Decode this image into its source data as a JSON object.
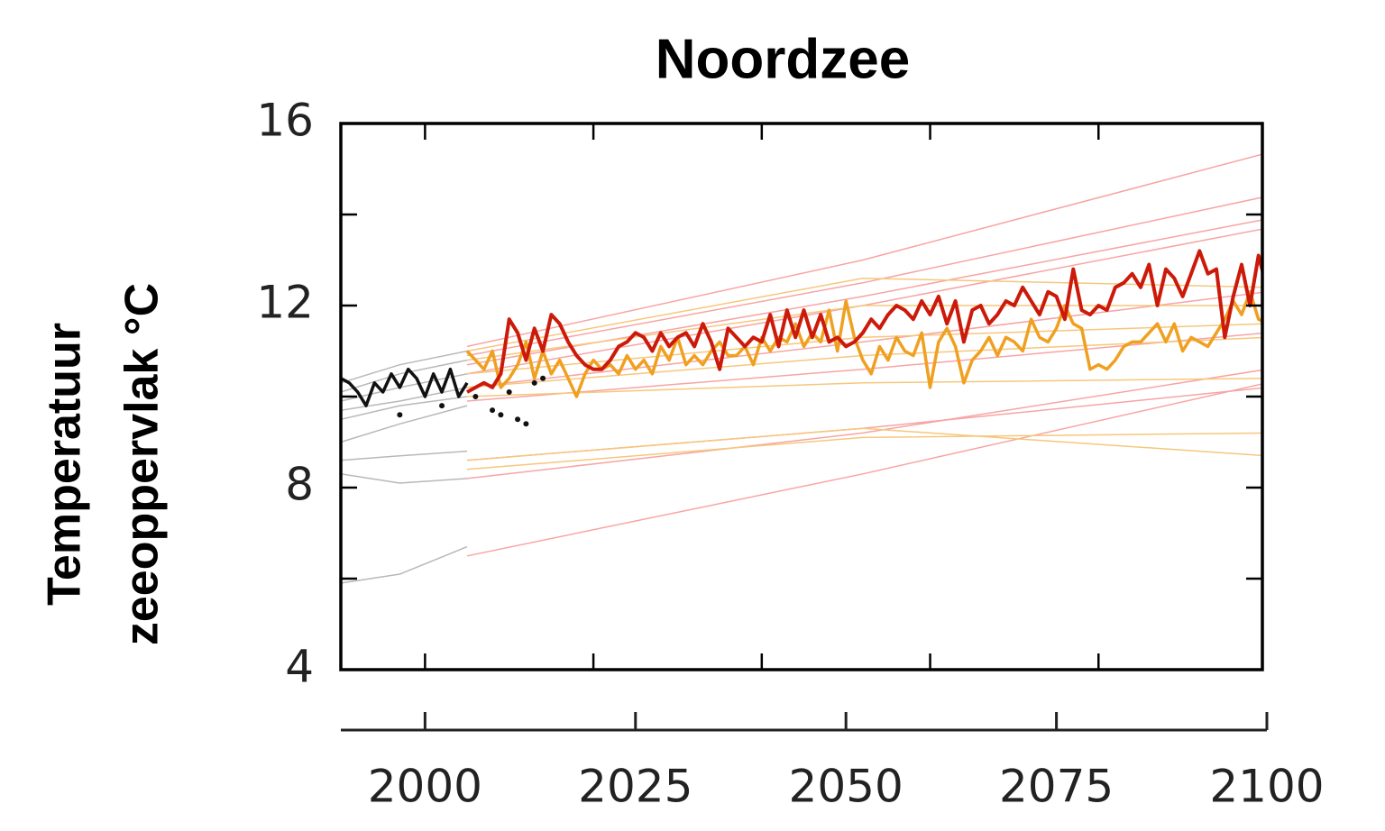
{
  "chart_data": {
    "type": "line",
    "title": "Noordzee",
    "ylabel": [
      "Temperatuur",
      "zeeoppervlak °C"
    ],
    "xlim": [
      1990,
      2100
    ],
    "xticks": [
      2000,
      2025,
      2050,
      2075,
      2100
    ],
    "plot_xticks": [
      2000,
      2020,
      2040,
      2060,
      2080
    ],
    "ylim": [
      4,
      16
    ],
    "yticks": [
      4,
      8,
      12,
      16
    ],
    "y_minor_ticks": [
      6,
      10,
      14
    ],
    "series": [
      {
        "color": "#b8b8b8",
        "linewidth": 1.5,
        "x": [
          1990,
          1997,
          2005
        ],
        "values": [
          10.3,
          10.7,
          11.0
        ]
      },
      {
        "color": "#b8b8b8",
        "linewidth": 1.5,
        "x": [
          1990,
          1997,
          2005
        ],
        "values": [
          10.1,
          10.5,
          10.8
        ]
      },
      {
        "color": "#b8b8b8",
        "linewidth": 1.5,
        "x": [
          1990,
          1997,
          2005
        ],
        "values": [
          9.9,
          10.2,
          10.5
        ]
      },
      {
        "color": "#b8b8b8",
        "linewidth": 1.5,
        "x": [
          1990,
          1997,
          2005
        ],
        "values": [
          9.7,
          9.9,
          10.2
        ]
      },
      {
        "color": "#b8b8b8",
        "linewidth": 1.5,
        "x": [
          1990,
          1997,
          2005
        ],
        "values": [
          9.5,
          9.8,
          10.0
        ]
      },
      {
        "color": "#b8b8b8",
        "linewidth": 1.5,
        "x": [
          1990,
          1997,
          2005
        ],
        "values": [
          9.0,
          9.4,
          9.8
        ]
      },
      {
        "color": "#b8b8b8",
        "linewidth": 1.5,
        "x": [
          1990,
          1997,
          2005
        ],
        "values": [
          8.6,
          8.7,
          8.8
        ]
      },
      {
        "color": "#b8b8b8",
        "linewidth": 1.5,
        "x": [
          1990,
          1997,
          2005
        ],
        "values": [
          8.3,
          8.1,
          8.2
        ]
      },
      {
        "color": "#b8b8b8",
        "linewidth": 1.5,
        "x": [
          1990,
          1997,
          2005
        ],
        "values": [
          5.9,
          6.1,
          6.7
        ]
      },
      {
        "color": "#f8a4a4",
        "linewidth": 1.5,
        "x": [
          2005,
          2052,
          2100
        ],
        "values": [
          11.1,
          13.0,
          15.35
        ]
      },
      {
        "color": "#f8a4a4",
        "linewidth": 1.5,
        "x": [
          2005,
          2052,
          2100
        ],
        "values": [
          10.9,
          12.5,
          14.4
        ]
      },
      {
        "color": "#f8a4a4",
        "linewidth": 1.5,
        "x": [
          2005,
          2052,
          2100
        ],
        "values": [
          10.7,
          12.2,
          13.9
        ]
      },
      {
        "color": "#f8a4a4",
        "linewidth": 1.5,
        "x": [
          2005,
          2052,
          2100
        ],
        "values": [
          10.5,
          12.0,
          13.7
        ]
      },
      {
        "color": "#f8a4a4",
        "linewidth": 1.5,
        "x": [
          2005,
          2052,
          2100
        ],
        "values": [
          10.2,
          11.2,
          12.3
        ]
      },
      {
        "color": "#f8a4a4",
        "linewidth": 1.5,
        "x": [
          2005,
          2052,
          2100
        ],
        "values": [
          9.9,
          10.6,
          11.4
        ]
      },
      {
        "color": "#f8a4a4",
        "linewidth": 1.5,
        "x": [
          2005,
          2052,
          2100
        ],
        "values": [
          8.6,
          9.3,
          10.2
        ]
      },
      {
        "color": "#f8a4a4",
        "linewidth": 1.5,
        "x": [
          2005,
          2052,
          2100
        ],
        "values": [
          8.2,
          9.2,
          10.6
        ]
      },
      {
        "color": "#f8a4a4",
        "linewidth": 1.5,
        "x": [
          2005,
          2052,
          2100
        ],
        "values": [
          6.5,
          8.3,
          10.3
        ]
      },
      {
        "color": "#f6c77c",
        "linewidth": 1.5,
        "x": [
          2005,
          2052,
          2100
        ],
        "values": [
          11.0,
          12.6,
          12.4
        ]
      },
      {
        "color": "#f6c77c",
        "linewidth": 1.5,
        "x": [
          2005,
          2052,
          2100
        ],
        "values": [
          10.8,
          12.0,
          12.0
        ]
      },
      {
        "color": "#f6c77c",
        "linewidth": 1.5,
        "x": [
          2005,
          2052,
          2100
        ],
        "values": [
          10.5,
          11.3,
          11.6
        ]
      },
      {
        "color": "#f6c77c",
        "linewidth": 1.5,
        "x": [
          2005,
          2052,
          2100
        ],
        "values": [
          10.2,
          10.9,
          11.3
        ]
      },
      {
        "color": "#f6c77c",
        "linewidth": 1.5,
        "x": [
          2005,
          2052,
          2100
        ],
        "values": [
          10.0,
          10.3,
          10.4
        ]
      },
      {
        "color": "#f6c77c",
        "linewidth": 1.5,
        "x": [
          2005,
          2052,
          2100
        ],
        "values": [
          8.4,
          9.1,
          9.2
        ]
      },
      {
        "color": "#f6c77c",
        "linewidth": 1.5,
        "x": [
          2005,
          2052,
          2100
        ],
        "values": [
          8.6,
          9.3,
          8.7
        ]
      },
      {
        "color": "#f0a020",
        "linewidth": 3.5,
        "x": [
          2005,
          2006,
          2007,
          2008,
          2009,
          2010,
          2011,
          2012,
          2013,
          2014,
          2015,
          2016,
          2017,
          2018,
          2019,
          2020,
          2021,
          2022,
          2023,
          2024,
          2025,
          2026,
          2027,
          2028,
          2029,
          2030,
          2031,
          2032,
          2033,
          2034,
          2035,
          2036,
          2037,
          2038,
          2039,
          2040,
          2041,
          2042,
          2043,
          2044,
          2045,
          2046,
          2047,
          2048,
          2049,
          2050,
          2051,
          2052,
          2053,
          2054,
          2055,
          2056,
          2057,
          2058,
          2059,
          2060,
          2061,
          2062,
          2063,
          2064,
          2065,
          2066,
          2067,
          2068,
          2069,
          2070,
          2071,
          2072,
          2073,
          2074,
          2075,
          2076,
          2077,
          2078,
          2079,
          2080,
          2081,
          2082,
          2083,
          2084,
          2085,
          2086,
          2087,
          2088,
          2089,
          2090,
          2091,
          2092,
          2093,
          2094,
          2095,
          2096,
          2097,
          2098,
          2099,
          2100
        ],
        "values": [
          11.0,
          10.8,
          10.6,
          11.0,
          10.2,
          10.4,
          10.7,
          11.2,
          10.4,
          11.0,
          10.5,
          10.8,
          10.4,
          10.0,
          10.5,
          10.8,
          10.6,
          10.7,
          10.5,
          10.9,
          10.6,
          10.8,
          10.5,
          11.1,
          10.8,
          11.3,
          10.7,
          10.9,
          10.7,
          11.0,
          11.2,
          10.9,
          10.9,
          11.1,
          10.7,
          11.3,
          11.0,
          11.3,
          11.2,
          11.6,
          11.1,
          11.4,
          11.2,
          11.9,
          11.0,
          12.1,
          11.3,
          10.8,
          10.5,
          11.1,
          10.8,
          11.3,
          11.0,
          10.9,
          11.4,
          10.2,
          11.2,
          11.5,
          11.1,
          10.3,
          10.8,
          11.0,
          11.3,
          10.9,
          11.3,
          11.2,
          11.0,
          11.7,
          11.3,
          11.2,
          11.5,
          12.0,
          11.6,
          11.5,
          10.6,
          10.7,
          10.6,
          10.8,
          11.1,
          11.2,
          11.2,
          11.4,
          11.6,
          11.2,
          11.6,
          11.0,
          11.3,
          11.2,
          11.1,
          11.4,
          11.7,
          12.1,
          11.8,
          12.3,
          11.7,
          11.6
        ]
      },
      {
        "color": "#cc1a0a",
        "linewidth": 4,
        "x": [
          2005,
          2006,
          2007,
          2008,
          2009,
          2010,
          2011,
          2012,
          2013,
          2014,
          2015,
          2016,
          2017,
          2018,
          2019,
          2020,
          2021,
          2022,
          2023,
          2024,
          2025,
          2026,
          2027,
          2028,
          2029,
          2030,
          2031,
          2032,
          2033,
          2034,
          2035,
          2036,
          2037,
          2038,
          2039,
          2040,
          2041,
          2042,
          2043,
          2044,
          2045,
          2046,
          2047,
          2048,
          2049,
          2050,
          2051,
          2052,
          2053,
          2054,
          2055,
          2056,
          2057,
          2058,
          2059,
          2060,
          2061,
          2062,
          2063,
          2064,
          2065,
          2066,
          2067,
          2068,
          2069,
          2070,
          2071,
          2072,
          2073,
          2074,
          2075,
          2076,
          2077,
          2078,
          2079,
          2080,
          2081,
          2082,
          2083,
          2084,
          2085,
          2086,
          2087,
          2088,
          2089,
          2090,
          2091,
          2092,
          2093,
          2094,
          2095,
          2096,
          2097,
          2098,
          2099,
          2100
        ],
        "values": [
          10.1,
          10.2,
          10.3,
          10.2,
          10.5,
          11.7,
          11.4,
          10.8,
          11.5,
          11.0,
          11.8,
          11.6,
          11.2,
          10.9,
          10.7,
          10.6,
          10.6,
          10.8,
          11.1,
          11.2,
          11.4,
          11.3,
          11.0,
          11.4,
          11.1,
          11.3,
          11.4,
          11.1,
          11.6,
          11.2,
          10.6,
          11.5,
          11.3,
          11.1,
          11.3,
          11.2,
          11.8,
          11.1,
          11.9,
          11.3,
          11.9,
          11.3,
          11.8,
          11.2,
          11.3,
          11.1,
          11.2,
          11.4,
          11.7,
          11.5,
          11.8,
          12.0,
          11.9,
          11.7,
          12.1,
          11.8,
          12.2,
          11.6,
          12.1,
          11.2,
          11.9,
          12.0,
          11.6,
          11.8,
          12.1,
          12.0,
          12.4,
          12.1,
          11.8,
          12.3,
          12.2,
          11.7,
          12.8,
          11.9,
          11.8,
          12.0,
          11.9,
          12.4,
          12.5,
          12.7,
          12.4,
          12.9,
          12.0,
          12.8,
          12.6,
          12.2,
          12.7,
          13.2,
          12.7,
          12.8,
          11.3,
          12.2,
          12.9,
          12.0,
          13.1,
          12.4
        ]
      },
      {
        "color": "#111111",
        "linewidth": 3.5,
        "x": [
          1990,
          1991,
          1992,
          1993,
          1994,
          1995,
          1996,
          1997,
          1998,
          1999,
          2000,
          2001,
          2002,
          2003,
          2004,
          2005
        ],
        "values": [
          10.4,
          10.3,
          10.1,
          9.8,
          10.3,
          10.1,
          10.5,
          10.2,
          10.6,
          10.4,
          10.0,
          10.5,
          10.1,
          10.6,
          10.0,
          10.3
        ]
      },
      {
        "color": "#111111",
        "marker": "dot",
        "x": [
          1997,
          2002,
          2006,
          2008,
          2009,
          2010,
          2011,
          2012,
          2013,
          2014
        ],
        "values": [
          9.6,
          9.8,
          10.0,
          9.7,
          9.6,
          10.1,
          9.5,
          9.4,
          10.3,
          10.4
        ]
      }
    ]
  }
}
